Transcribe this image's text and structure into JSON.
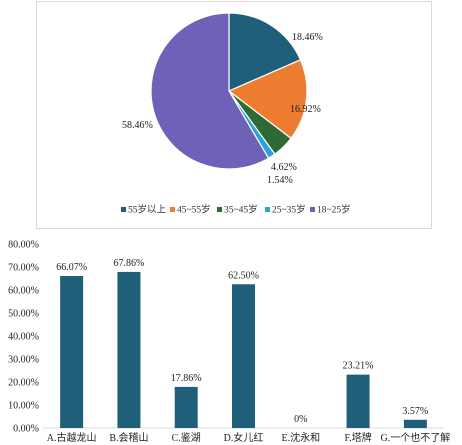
{
  "chart_data": [
    {
      "type": "pie",
      "title": "",
      "slices": [
        {
          "label": "55岁以上",
          "value": 18.46,
          "display": "18.46%",
          "color": "#1f5f7a"
        },
        {
          "label": "45~55岁",
          "value": 16.92,
          "display": "16.92%",
          "color": "#ed7d31"
        },
        {
          "label": "35~45岁",
          "value": 4.62,
          "display": "4.62%",
          "color": "#2e6b34"
        },
        {
          "label": "25~35岁",
          "value": 1.54,
          "display": "1.54%",
          "color": "#2aa4d8"
        },
        {
          "label": "18~25岁",
          "value": 58.46,
          "display": "58.46%",
          "color": "#6e62b8"
        }
      ],
      "legend_position": "bottom"
    },
    {
      "type": "bar",
      "title": "",
      "categories": [
        "A.古越龙山",
        "B.会稽山",
        "C.鉴湖",
        "D.女儿红",
        "E.沈永和",
        "F.塔牌",
        "G.一个也不了解"
      ],
      "values": [
        66.07,
        67.86,
        17.86,
        62.5,
        0,
        23.21,
        3.57
      ],
      "value_labels": [
        "66.07%",
        "67.86%",
        "17.86%",
        "62.50%",
        "0%",
        "23.21%",
        "3.57%"
      ],
      "ylim": [
        0,
        80
      ],
      "yticks": [
        "0.00%",
        "10.00%",
        "20.00%",
        "30.00%",
        "40.00%",
        "50.00%",
        "60.00%",
        "70.00%",
        "80.00%"
      ],
      "color": "#1f5f7a",
      "grid": false
    }
  ]
}
